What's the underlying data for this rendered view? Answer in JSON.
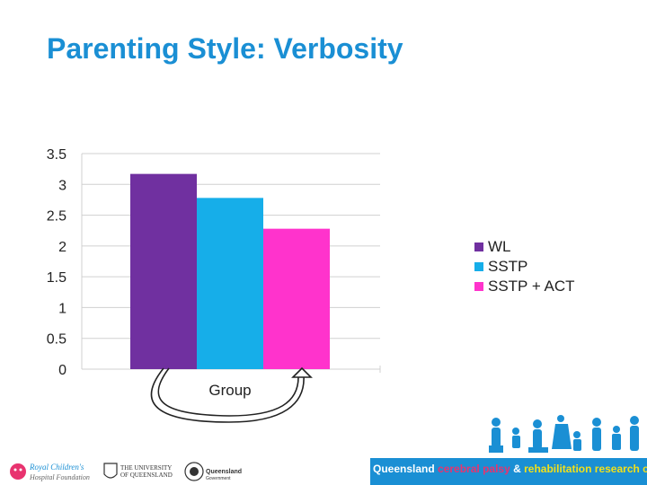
{
  "slide": {
    "title": "Parenting Style: Verbosity"
  },
  "chart_data": {
    "type": "bar",
    "categories": [
      "Group"
    ],
    "series": [
      {
        "name": "WL",
        "values": [
          3.17
        ],
        "color": "#7030a0"
      },
      {
        "name": "SSTP",
        "values": [
          2.78
        ],
        "color": "#16aee9"
      },
      {
        "name": "SSTP + ACT",
        "values": [
          2.28
        ],
        "color": "#ff33cc"
      }
    ],
    "xlabel": "",
    "ylabel": "",
    "ylim": [
      0,
      3.5
    ],
    "yticks": [
      "0",
      "0.5",
      "1",
      "1.5",
      "2",
      "2.5",
      "3",
      "3.5"
    ],
    "grid": true,
    "legend": "right",
    "annotation": "curved arrow from WL bar to SSTP + ACT bar"
  },
  "footer": {
    "rch_logo": "Royal Children's Hospital Foundation",
    "uq_logo": "The University of Queensland",
    "qg_logo": "Queensland Government",
    "centre_a": "Queensland",
    "centre_b": "cerebral palsy",
    "centre_c": "&",
    "centre_d": "rehabilitation research centre"
  }
}
